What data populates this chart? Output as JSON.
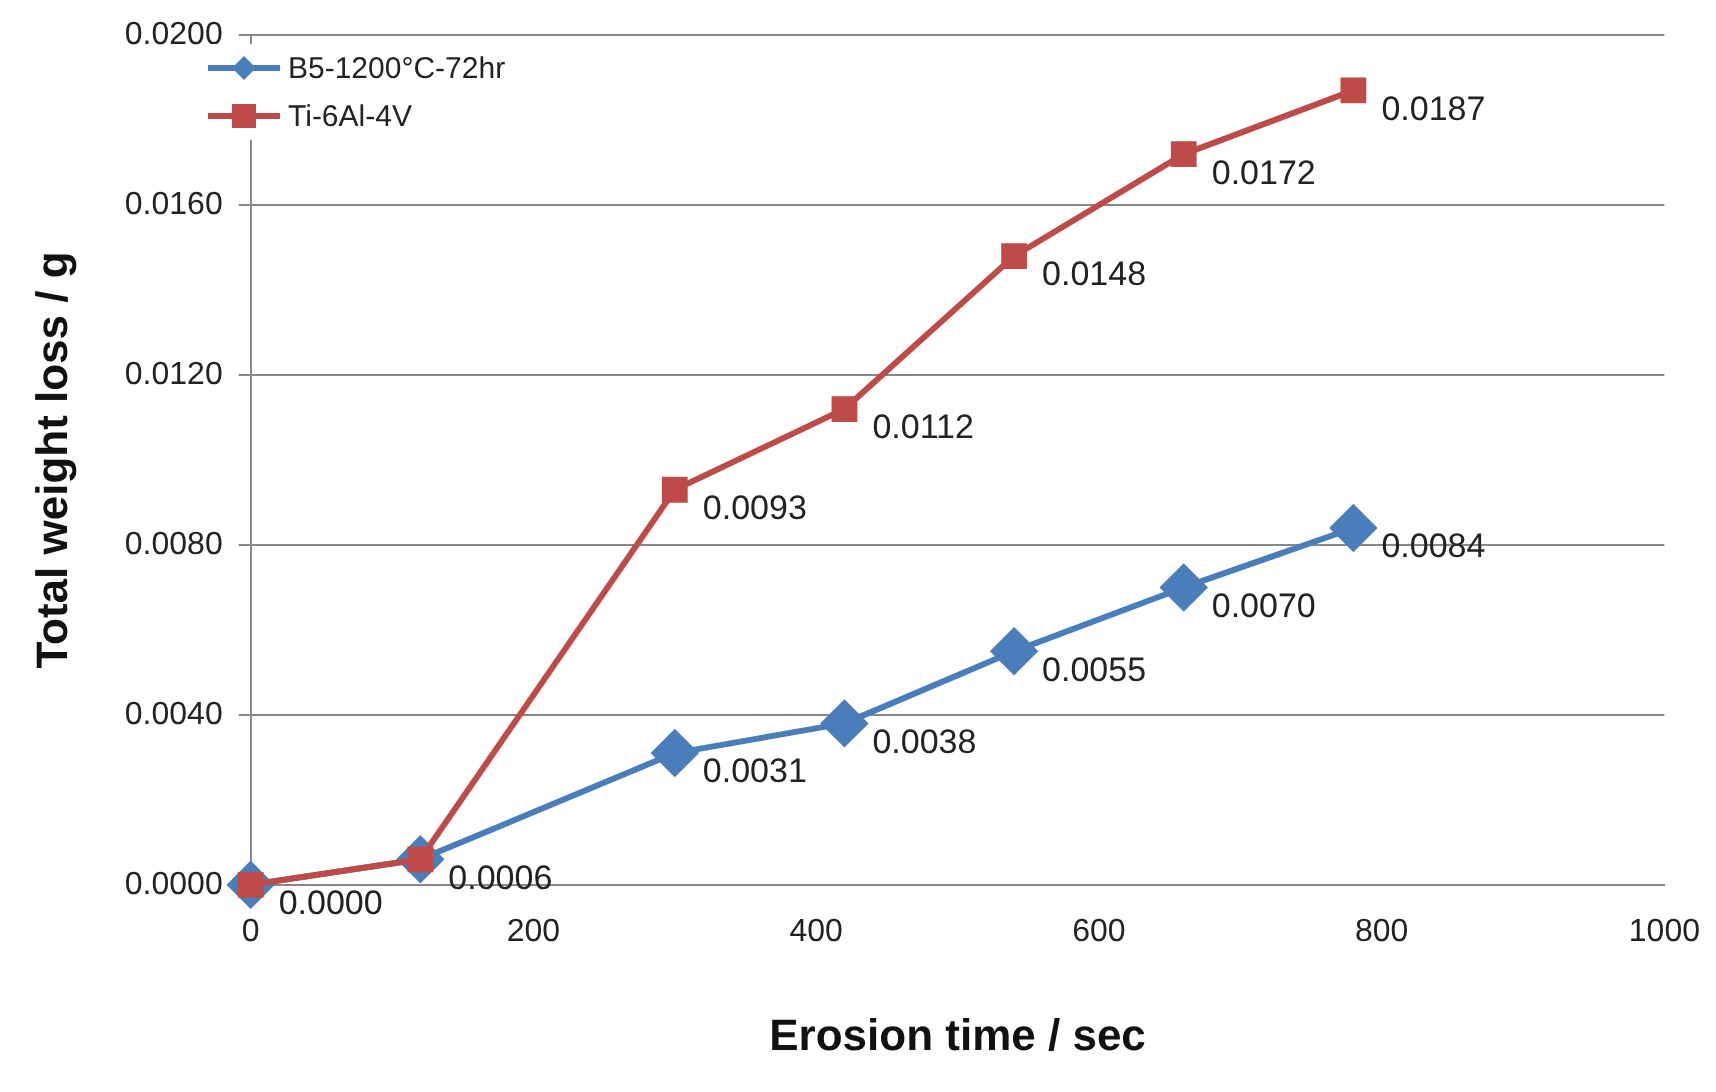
{
  "chart_data": {
    "type": "line",
    "xlabel": "Erosion time / sec",
    "ylabel": "Total weight loss / g",
    "x": [
      0,
      120,
      300,
      420,
      540,
      660,
      780
    ],
    "series": [
      {
        "name": "B5-1200°C-72hr",
        "color": "#4a7ebb",
        "marker": "diamond",
        "values": [
          0.0,
          0.0006,
          0.0031,
          0.0038,
          0.0055,
          0.007,
          0.0084
        ],
        "value_labels": [
          "0.0000",
          "0.0006",
          "0.0031",
          "0.0038",
          "0.0055",
          "0.0070",
          "0.0084"
        ]
      },
      {
        "name": "Ti-6Al-4V",
        "color": "#be4b48",
        "marker": "square",
        "values": [
          0.0,
          0.0006,
          0.0093,
          0.0112,
          0.0148,
          0.0172,
          0.0187
        ],
        "value_labels": [
          null,
          null,
          "0.0093",
          "0.0112",
          "0.0148",
          "0.0172",
          "0.0187"
        ]
      }
    ],
    "xlim": [
      0,
      1000
    ],
    "xticks": [
      0,
      200,
      400,
      600,
      800,
      1000
    ],
    "ylim": [
      0,
      0.02
    ],
    "yticks": [
      {
        "value": 0,
        "label": "0.0000"
      },
      {
        "value": 0.004,
        "label": "0.0040"
      },
      {
        "value": 0.008,
        "label": "0.0080"
      },
      {
        "value": 0.012,
        "label": "0.0120"
      },
      {
        "value": 0.016,
        "label": "0.0160"
      },
      {
        "value": 0.02,
        "label": "0.0200"
      }
    ],
    "grid": "y",
    "legend": "top left"
  }
}
